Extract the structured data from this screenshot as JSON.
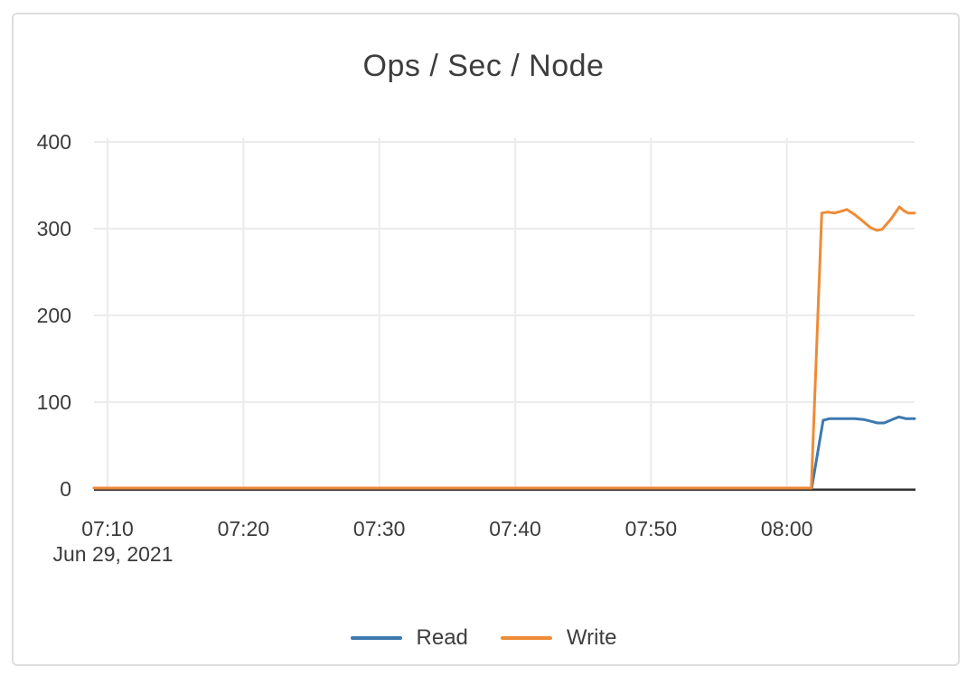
{
  "chart_data": {
    "type": "line",
    "title": "Ops / Sec / Node",
    "x_axis": {
      "date_label": "Jun 29, 2021",
      "start": "07:09:00",
      "end": "08:09:24",
      "tick_labels": [
        "07:10",
        "07:20",
        "07:30",
        "07:40",
        "07:50",
        "08:00"
      ],
      "tick_times": [
        "07:10:00",
        "07:20:00",
        "07:30:00",
        "07:40:00",
        "07:50:00",
        "08:00:00"
      ]
    },
    "y_axis": {
      "min": 0,
      "max": 400,
      "tick_labels": [
        "0",
        "100",
        "200",
        "300",
        "400"
      ],
      "tick_values": [
        0,
        100,
        200,
        300,
        400
      ]
    },
    "grid": true,
    "legend_position": "bottom",
    "series": [
      {
        "name": "Read",
        "color": "#3d79af",
        "points": [
          [
            "07:09:00",
            0
          ],
          [
            "07:30:00",
            0
          ],
          [
            "07:50:00",
            0
          ],
          [
            "08:00:00",
            0
          ],
          [
            "08:01:00",
            0
          ],
          [
            "08:01:50",
            0
          ],
          [
            "08:02:40",
            78
          ],
          [
            "08:03:10",
            80
          ],
          [
            "08:04:00",
            80
          ],
          [
            "08:05:00",
            80
          ],
          [
            "08:05:40",
            79
          ],
          [
            "08:06:10",
            77
          ],
          [
            "08:06:40",
            75
          ],
          [
            "08:07:10",
            75
          ],
          [
            "08:07:45",
            79
          ],
          [
            "08:08:15",
            82
          ],
          [
            "08:08:45",
            80
          ],
          [
            "08:09:24",
            80
          ]
        ]
      },
      {
        "name": "Write",
        "color": "#ee8b37",
        "points": [
          [
            "07:09:00",
            0
          ],
          [
            "07:30:00",
            0
          ],
          [
            "07:50:00",
            0
          ],
          [
            "08:00:00",
            0
          ],
          [
            "08:01:00",
            0
          ],
          [
            "08:01:48",
            0
          ],
          [
            "08:02:34",
            317
          ],
          [
            "08:03:00",
            318
          ],
          [
            "08:03:30",
            317
          ],
          [
            "08:04:00",
            319
          ],
          [
            "08:04:25",
            321
          ],
          [
            "08:05:00",
            315
          ],
          [
            "08:05:38",
            307
          ],
          [
            "08:06:10",
            300
          ],
          [
            "08:06:38",
            297
          ],
          [
            "08:07:00",
            298
          ],
          [
            "08:07:40",
            310
          ],
          [
            "08:08:17",
            324
          ],
          [
            "08:08:40",
            319
          ],
          [
            "08:08:57",
            317
          ],
          [
            "08:09:24",
            317
          ]
        ]
      }
    ],
    "colors": {
      "grid": "#ebebeb",
      "axis_line": "#333333",
      "text": "#3b3b3b",
      "background": "#ffffff",
      "border": "#dedede"
    }
  }
}
